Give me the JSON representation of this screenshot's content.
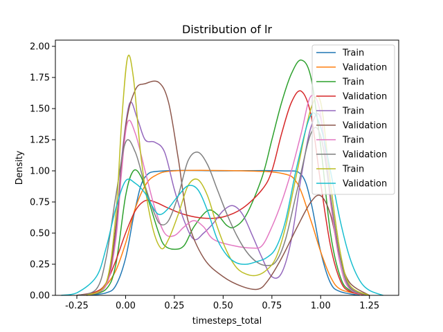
{
  "chart_data": {
    "type": "line",
    "title": "Distribution of lr",
    "xlabel": "timesteps_total",
    "ylabel": "Density",
    "xlim": [
      -0.36,
      1.4
    ],
    "ylim": [
      0,
      2.05
    ],
    "xticks": [
      "-0.25",
      "0.00",
      "0.25",
      "0.50",
      "0.75",
      "1.00",
      "1.25"
    ],
    "xtick_values": [
      -0.25,
      0.0,
      0.25,
      0.5,
      0.75,
      1.0,
      1.25
    ],
    "yticks": [
      "0.00",
      "0.25",
      "0.50",
      "0.75",
      "1.00",
      "1.25",
      "1.50",
      "1.75",
      "2.00"
    ],
    "ytick_values": [
      0,
      0.25,
      0.5,
      0.75,
      1.0,
      1.25,
      1.5,
      1.75,
      2.0
    ],
    "grid": false,
    "legend_position": "top-right",
    "series": [
      {
        "name": "Train",
        "color": "#1f77b4",
        "points": [
          [
            -0.2,
            0.0
          ],
          [
            -0.1,
            0.02
          ],
          [
            -0.05,
            0.08
          ],
          [
            0.0,
            0.3
          ],
          [
            0.05,
            0.7
          ],
          [
            0.1,
            0.95
          ],
          [
            0.2,
            1.0
          ],
          [
            0.5,
            1.0
          ],
          [
            0.8,
            1.0
          ],
          [
            0.9,
            0.97
          ],
          [
            0.95,
            0.75
          ],
          [
            1.0,
            0.35
          ],
          [
            1.05,
            0.1
          ],
          [
            1.1,
            0.03
          ],
          [
            1.2,
            0.0
          ]
        ]
      },
      {
        "name": "Validation",
        "color": "#ff7f0e",
        "points": [
          [
            -0.25,
            0.0
          ],
          [
            -0.15,
            0.02
          ],
          [
            -0.1,
            0.08
          ],
          [
            -0.05,
            0.2
          ],
          [
            0.0,
            0.42
          ],
          [
            0.05,
            0.7
          ],
          [
            0.1,
            0.88
          ],
          [
            0.15,
            0.96
          ],
          [
            0.25,
            1.0
          ],
          [
            0.6,
            1.0
          ],
          [
            0.8,
            0.98
          ],
          [
            0.88,
            0.9
          ],
          [
            0.95,
            0.6
          ],
          [
            1.0,
            0.35
          ],
          [
            1.05,
            0.15
          ],
          [
            1.1,
            0.05
          ],
          [
            1.2,
            0.01
          ],
          [
            1.25,
            0.0
          ]
        ]
      },
      {
        "name": "Train",
        "color": "#2ca02c",
        "points": [
          [
            -0.2,
            0.0
          ],
          [
            -0.1,
            0.05
          ],
          [
            -0.05,
            0.25
          ],
          [
            0.0,
            0.8
          ],
          [
            0.04,
            1.0
          ],
          [
            0.08,
            0.95
          ],
          [
            0.12,
            0.75
          ],
          [
            0.17,
            0.5
          ],
          [
            0.2,
            0.4
          ],
          [
            0.25,
            0.37
          ],
          [
            0.3,
            0.4
          ],
          [
            0.35,
            0.55
          ],
          [
            0.42,
            0.68
          ],
          [
            0.47,
            0.65
          ],
          [
            0.52,
            0.56
          ],
          [
            0.56,
            0.55
          ],
          [
            0.62,
            0.65
          ],
          [
            0.7,
            0.95
          ],
          [
            0.75,
            1.25
          ],
          [
            0.8,
            1.55
          ],
          [
            0.85,
            1.78
          ],
          [
            0.9,
            1.89
          ],
          [
            0.95,
            1.75
          ],
          [
            1.0,
            1.2
          ],
          [
            1.05,
            0.5
          ],
          [
            1.1,
            0.15
          ],
          [
            1.15,
            0.04
          ],
          [
            1.25,
            0.0
          ]
        ]
      },
      {
        "name": "Validation",
        "color": "#d62728",
        "points": [
          [
            -0.25,
            0.0
          ],
          [
            -0.15,
            0.03
          ],
          [
            -0.1,
            0.1
          ],
          [
            -0.05,
            0.28
          ],
          [
            0.0,
            0.5
          ],
          [
            0.05,
            0.68
          ],
          [
            0.1,
            0.76
          ],
          [
            0.15,
            0.75
          ],
          [
            0.22,
            0.7
          ],
          [
            0.3,
            0.65
          ],
          [
            0.4,
            0.62
          ],
          [
            0.5,
            0.63
          ],
          [
            0.6,
            0.7
          ],
          [
            0.7,
            0.85
          ],
          [
            0.75,
            1.0
          ],
          [
            0.8,
            1.3
          ],
          [
            0.85,
            1.55
          ],
          [
            0.9,
            1.64
          ],
          [
            0.95,
            1.45
          ],
          [
            1.0,
            0.9
          ],
          [
            1.05,
            0.4
          ],
          [
            1.1,
            0.12
          ],
          [
            1.15,
            0.03
          ],
          [
            1.25,
            0.0
          ]
        ]
      },
      {
        "name": "Train",
        "color": "#9467bd",
        "points": [
          [
            -0.2,
            0.0
          ],
          [
            -0.1,
            0.08
          ],
          [
            -0.05,
            0.5
          ],
          [
            -0.02,
            1.1
          ],
          [
            0.02,
            1.54
          ],
          [
            0.06,
            1.42
          ],
          [
            0.1,
            1.25
          ],
          [
            0.15,
            1.23
          ],
          [
            0.2,
            1.15
          ],
          [
            0.25,
            0.85
          ],
          [
            0.3,
            0.6
          ],
          [
            0.35,
            0.45
          ],
          [
            0.4,
            0.5
          ],
          [
            0.45,
            0.58
          ],
          [
            0.5,
            0.68
          ],
          [
            0.55,
            0.72
          ],
          [
            0.6,
            0.65
          ],
          [
            0.65,
            0.48
          ],
          [
            0.7,
            0.3
          ],
          [
            0.75,
            0.15
          ],
          [
            0.8,
            0.18
          ],
          [
            0.85,
            0.45
          ],
          [
            0.9,
            0.95
          ],
          [
            0.95,
            1.35
          ],
          [
            1.0,
            1.42
          ],
          [
            1.05,
            0.8
          ],
          [
            1.1,
            0.3
          ],
          [
            1.15,
            0.07
          ],
          [
            1.25,
            0.0
          ]
        ]
      },
      {
        "name": "Validation",
        "color": "#8c564b",
        "points": [
          [
            -0.2,
            0.0
          ],
          [
            -0.1,
            0.08
          ],
          [
            -0.05,
            0.55
          ],
          [
            0.0,
            1.35
          ],
          [
            0.05,
            1.65
          ],
          [
            0.1,
            1.7
          ],
          [
            0.17,
            1.71
          ],
          [
            0.22,
            1.55
          ],
          [
            0.27,
            1.1
          ],
          [
            0.32,
            0.6
          ],
          [
            0.4,
            0.3
          ],
          [
            0.5,
            0.15
          ],
          [
            0.6,
            0.07
          ],
          [
            0.68,
            0.05
          ],
          [
            0.73,
            0.12
          ],
          [
            0.8,
            0.3
          ],
          [
            0.88,
            0.55
          ],
          [
            0.95,
            0.75
          ],
          [
            1.0,
            0.8
          ],
          [
            1.05,
            0.65
          ],
          [
            1.1,
            0.3
          ],
          [
            1.15,
            0.1
          ],
          [
            1.25,
            0.0
          ]
        ]
      },
      {
        "name": "Train",
        "color": "#e377c2",
        "points": [
          [
            -0.2,
            0.0
          ],
          [
            -0.1,
            0.08
          ],
          [
            -0.05,
            0.45
          ],
          [
            -0.02,
            1.0
          ],
          [
            0.01,
            1.39
          ],
          [
            0.05,
            1.3
          ],
          [
            0.1,
            1.0
          ],
          [
            0.15,
            0.7
          ],
          [
            0.2,
            0.5
          ],
          [
            0.25,
            0.48
          ],
          [
            0.3,
            0.55
          ],
          [
            0.35,
            0.6
          ],
          [
            0.4,
            0.55
          ],
          [
            0.45,
            0.45
          ],
          [
            0.55,
            0.4
          ],
          [
            0.65,
            0.38
          ],
          [
            0.7,
            0.4
          ],
          [
            0.75,
            0.55
          ],
          [
            0.8,
            0.75
          ],
          [
            0.85,
            1.0
          ],
          [
            0.9,
            1.3
          ],
          [
            0.95,
            1.6
          ],
          [
            1.0,
            1.45
          ],
          [
            1.05,
            0.75
          ],
          [
            1.1,
            0.25
          ],
          [
            1.15,
            0.05
          ],
          [
            1.25,
            0.0
          ]
        ]
      },
      {
        "name": "Validation",
        "color": "#7f7f7f",
        "points": [
          [
            -0.25,
            0.0
          ],
          [
            -0.15,
            0.05
          ],
          [
            -0.1,
            0.3
          ],
          [
            -0.05,
            0.8
          ],
          [
            0.0,
            1.23
          ],
          [
            0.05,
            1.15
          ],
          [
            0.1,
            0.88
          ],
          [
            0.15,
            0.65
          ],
          [
            0.18,
            0.57
          ],
          [
            0.22,
            0.6
          ],
          [
            0.27,
            0.8
          ],
          [
            0.32,
            1.08
          ],
          [
            0.37,
            1.15
          ],
          [
            0.42,
            1.05
          ],
          [
            0.47,
            0.85
          ],
          [
            0.52,
            0.65
          ],
          [
            0.57,
            0.48
          ],
          [
            0.62,
            0.35
          ],
          [
            0.67,
            0.27
          ],
          [
            0.72,
            0.24
          ],
          [
            0.77,
            0.27
          ],
          [
            0.82,
            0.45
          ],
          [
            0.88,
            0.85
          ],
          [
            0.95,
            1.3
          ],
          [
            1.0,
            1.28
          ],
          [
            1.05,
            0.8
          ],
          [
            1.1,
            0.3
          ],
          [
            1.15,
            0.06
          ],
          [
            1.25,
            0.0
          ]
        ]
      },
      {
        "name": "Train",
        "color": "#bcbd22",
        "points": [
          [
            -0.2,
            0.0
          ],
          [
            -0.1,
            0.1
          ],
          [
            -0.05,
            0.65
          ],
          [
            -0.02,
            1.4
          ],
          [
            0.01,
            1.91
          ],
          [
            0.04,
            1.75
          ],
          [
            0.08,
            1.1
          ],
          [
            0.13,
            0.6
          ],
          [
            0.18,
            0.38
          ],
          [
            0.22,
            0.45
          ],
          [
            0.27,
            0.65
          ],
          [
            0.32,
            0.88
          ],
          [
            0.37,
            0.93
          ],
          [
            0.42,
            0.8
          ],
          [
            0.47,
            0.55
          ],
          [
            0.52,
            0.35
          ],
          [
            0.57,
            0.22
          ],
          [
            0.62,
            0.17
          ],
          [
            0.67,
            0.16
          ],
          [
            0.72,
            0.2
          ],
          [
            0.77,
            0.3
          ],
          [
            0.82,
            0.55
          ],
          [
            0.88,
            1.0
          ],
          [
            0.95,
            1.5
          ],
          [
            1.0,
            1.55
          ],
          [
            1.05,
            0.9
          ],
          [
            1.1,
            0.35
          ],
          [
            1.15,
            0.08
          ],
          [
            1.25,
            0.0
          ]
        ]
      },
      {
        "name": "Validation",
        "color": "#17becf",
        "points": [
          [
            -0.33,
            0.0
          ],
          [
            -0.25,
            0.02
          ],
          [
            -0.15,
            0.15
          ],
          [
            -0.1,
            0.38
          ],
          [
            -0.05,
            0.7
          ],
          [
            0.0,
            0.92
          ],
          [
            0.05,
            0.9
          ],
          [
            0.1,
            0.82
          ],
          [
            0.15,
            0.68
          ],
          [
            0.18,
            0.65
          ],
          [
            0.22,
            0.7
          ],
          [
            0.27,
            0.8
          ],
          [
            0.32,
            0.88
          ],
          [
            0.37,
            0.85
          ],
          [
            0.42,
            0.68
          ],
          [
            0.47,
            0.45
          ],
          [
            0.52,
            0.32
          ],
          [
            0.57,
            0.26
          ],
          [
            0.62,
            0.25
          ],
          [
            0.67,
            0.27
          ],
          [
            0.72,
            0.3
          ],
          [
            0.77,
            0.38
          ],
          [
            0.82,
            0.6
          ],
          [
            0.88,
            1.05
          ],
          [
            0.95,
            1.45
          ],
          [
            1.0,
            1.35
          ],
          [
            1.05,
            1.0
          ],
          [
            1.1,
            0.6
          ],
          [
            1.15,
            0.3
          ],
          [
            1.2,
            0.12
          ],
          [
            1.25,
            0.04
          ],
          [
            1.32,
            0.0
          ]
        ]
      }
    ]
  }
}
